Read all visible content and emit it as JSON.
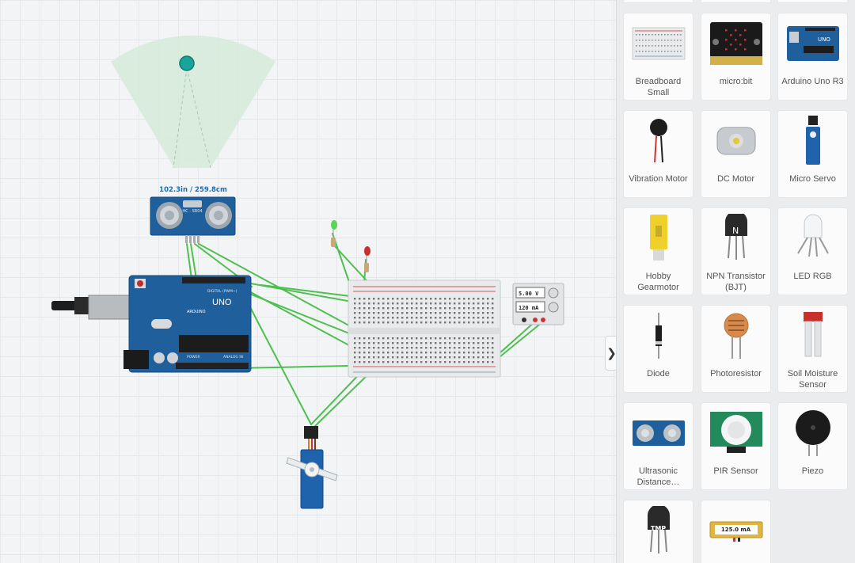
{
  "canvas": {
    "sensor_distance": "102.3in / 259.8cm",
    "ultrasonic_label": "HC - SR04",
    "arduino_brand": "UNO",
    "arduino_sub": "ARDUINO",
    "arduino_digital": "DIGITAL (PWM~)",
    "arduino_power": "POWER",
    "arduino_analog": "ANALOG IN",
    "psu_voltage": "5.00 V",
    "psu_current": "120 mA"
  },
  "panel": {
    "collapse_glyph": "❯",
    "components": [
      {
        "label": "Breadboard Small",
        "icon": "breadboard-small-icon"
      },
      {
        "label": "micro:bit",
        "icon": "microbit-icon"
      },
      {
        "label": "Arduino Uno R3",
        "icon": "arduino-uno-icon"
      },
      {
        "label": "Vibration Motor",
        "icon": "vibration-motor-icon"
      },
      {
        "label": "DC Motor",
        "icon": "dc-motor-icon"
      },
      {
        "label": "Micro Servo",
        "icon": "micro-servo-icon"
      },
      {
        "label": "Hobby Gearmotor",
        "icon": "hobby-gearmotor-icon"
      },
      {
        "label": "NPN Transistor (BJT)",
        "icon": "npn-transistor-icon"
      },
      {
        "label": "LED RGB",
        "icon": "led-rgb-icon"
      },
      {
        "label": "Diode",
        "icon": "diode-icon"
      },
      {
        "label": "Photoresistor",
        "icon": "photoresistor-icon"
      },
      {
        "label": "Soil Moisture Sensor",
        "icon": "soil-moisture-sensor-icon"
      },
      {
        "label": "Ultrasonic Distance…",
        "icon": "ultrasonic-sensor-icon"
      },
      {
        "label": "PIR Sensor",
        "icon": "pir-sensor-icon"
      },
      {
        "label": "Piezo",
        "icon": "piezo-icon"
      },
      {
        "label": "",
        "icon": "tmp-sensor-icon",
        "chip": "TMP"
      },
      {
        "label": "",
        "icon": "ammeter-icon",
        "chip": "125.0 mA"
      }
    ]
  },
  "colors": {
    "wire": "#4fbf4f",
    "arduino_blue": "#1f5f9c",
    "sensor_cone": "#d3ead9",
    "sensor_dot": "#1aa39a"
  }
}
